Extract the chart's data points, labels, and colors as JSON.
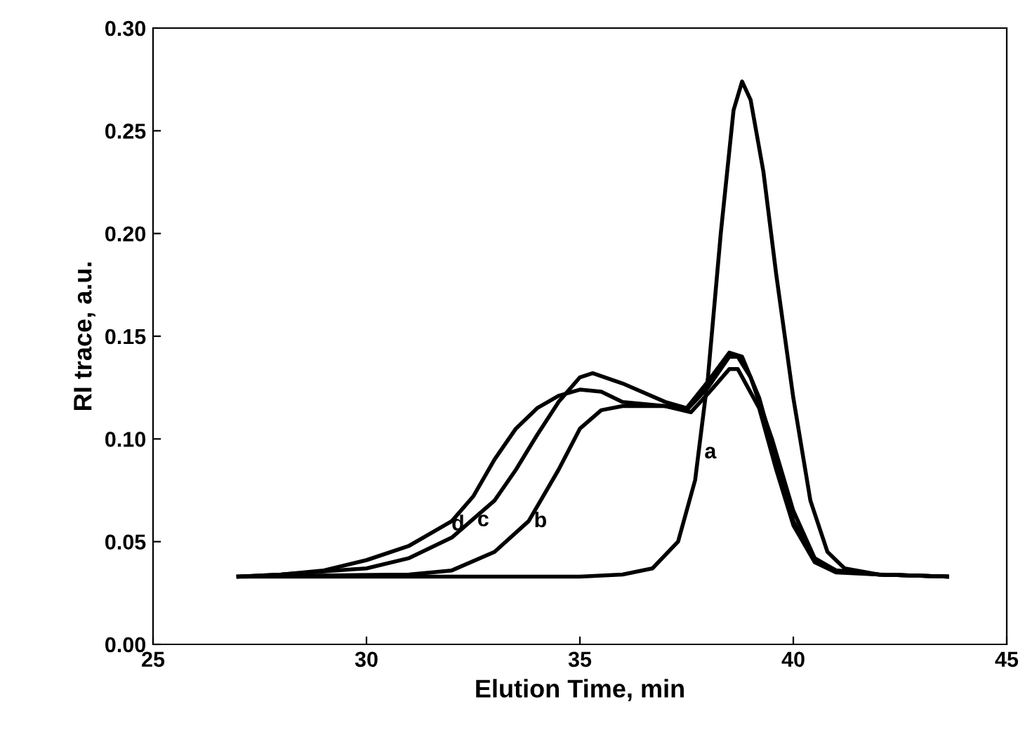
{
  "chart_data": {
    "type": "line",
    "xlabel": "Elution Time, min",
    "ylabel": "RI trace, a.u.",
    "xlim": [
      25,
      45
    ],
    "xticks": [
      25,
      30,
      35,
      40,
      45
    ],
    "ylim": [
      0,
      0.3
    ],
    "yticks": [
      {
        "value": 0,
        "label": "0.00"
      },
      {
        "value": 0.05,
        "label": "0.05"
      },
      {
        "value": 0.1,
        "label": "0.10"
      },
      {
        "value": 0.15,
        "label": "0.15"
      },
      {
        "value": 0.2,
        "label": "0.20"
      },
      {
        "value": 0.25,
        "label": "0.25"
      },
      {
        "value": 0.3,
        "label": "0.30"
      }
    ],
    "grid": false,
    "marker": "none",
    "line_style": "solid",
    "series": [
      {
        "name": "a",
        "color": "#000000",
        "x": [
          27,
          35,
          36,
          36.7,
          37.3,
          37.7,
          38.0,
          38.3,
          38.6,
          38.8,
          39.0,
          39.3,
          39.6,
          40,
          40.4,
          40.8,
          41.2,
          42,
          43.6
        ],
        "values": [
          0.033,
          0.033,
          0.034,
          0.037,
          0.05,
          0.08,
          0.13,
          0.2,
          0.26,
          0.274,
          0.265,
          0.23,
          0.18,
          0.12,
          0.07,
          0.045,
          0.037,
          0.034,
          0.033
        ]
      },
      {
        "name": "b",
        "color": "#000000",
        "x": [
          27,
          31,
          32,
          33,
          33.8,
          34.5,
          35,
          35.5,
          36,
          37,
          37.5,
          38,
          38.5,
          38.7,
          39,
          39.5,
          40,
          40.5,
          41,
          42,
          43.6
        ],
        "values": [
          0.033,
          0.034,
          0.036,
          0.045,
          0.06,
          0.085,
          0.105,
          0.114,
          0.116,
          0.116,
          0.114,
          0.125,
          0.14,
          0.14,
          0.13,
          0.1,
          0.065,
          0.042,
          0.036,
          0.034,
          0.033
        ]
      },
      {
        "name": "c",
        "color": "#000000",
        "x": [
          27,
          28,
          30,
          31,
          32,
          33,
          33.5,
          34,
          34.5,
          35,
          35.3,
          36,
          37,
          37.5,
          38,
          38.5,
          38.8,
          39.2,
          39.6,
          40,
          40.5,
          41,
          42,
          43.6
        ],
        "values": [
          0.033,
          0.034,
          0.037,
          0.042,
          0.052,
          0.07,
          0.085,
          0.102,
          0.118,
          0.13,
          0.132,
          0.127,
          0.118,
          0.115,
          0.128,
          0.142,
          0.14,
          0.12,
          0.09,
          0.06,
          0.041,
          0.036,
          0.034,
          0.033
        ]
      },
      {
        "name": "d",
        "color": "#000000",
        "x": [
          27,
          28,
          29,
          30,
          31,
          32,
          32.5,
          33,
          33.5,
          34,
          34.5,
          35,
          35.5,
          36,
          37,
          37.6,
          38,
          38.5,
          38.7,
          39.2,
          39.6,
          40,
          40.5,
          41,
          42,
          43.6
        ],
        "values": [
          0.033,
          0.034,
          0.036,
          0.041,
          0.048,
          0.06,
          0.072,
          0.09,
          0.105,
          0.115,
          0.121,
          0.124,
          0.123,
          0.118,
          0.116,
          0.113,
          0.122,
          0.134,
          0.134,
          0.115,
          0.085,
          0.058,
          0.04,
          0.035,
          0.034,
          0.033
        ]
      }
    ],
    "legend": false
  }
}
